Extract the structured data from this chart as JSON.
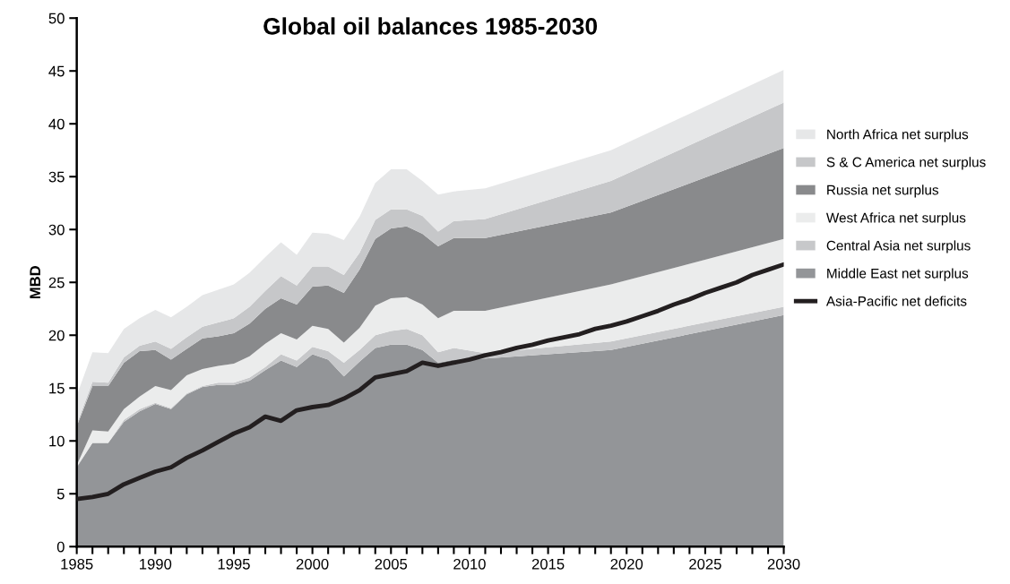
{
  "chart_data": {
    "type": "area",
    "stacked": true,
    "title": "Global oil balances 1985-2030",
    "ylabel": "MBD",
    "xlim": [
      1985,
      2030
    ],
    "ylim": [
      0,
      50
    ],
    "yticks": [
      0,
      5,
      10,
      15,
      20,
      25,
      30,
      35,
      40,
      45,
      50
    ],
    "xticks": [
      1985,
      {
        "value": 1986,
        "label": null
      },
      {
        "value": 1987,
        "label": null
      },
      {
        "value": 1988,
        "label": null
      },
      {
        "value": 1989,
        "label": null
      },
      1990,
      {
        "value": 1991,
        "label": null
      },
      {
        "value": 1992,
        "label": null
      },
      {
        "value": 1993,
        "label": null
      },
      {
        "value": 1994,
        "label": null
      },
      1995,
      {
        "value": 1996,
        "label": null
      },
      {
        "value": 1997,
        "label": null
      },
      {
        "value": 1998,
        "label": null
      },
      {
        "value": 1999,
        "label": null
      },
      2000,
      {
        "value": 2001,
        "label": null
      },
      {
        "value": 2002,
        "label": null
      },
      {
        "value": 2003,
        "label": null
      },
      {
        "value": 2004,
        "label": null
      },
      2005,
      {
        "value": 2006,
        "label": null
      },
      {
        "value": 2007,
        "label": null
      },
      {
        "value": 2008,
        "label": null
      },
      {
        "value": 2009,
        "label": null
      },
      2010,
      {
        "value": 2011,
        "label": null
      },
      {
        "value": 2012,
        "label": null
      },
      {
        "value": 2013,
        "label": null
      },
      {
        "value": 2014,
        "label": null
      },
      2015,
      {
        "value": 2016,
        "label": null
      },
      {
        "value": 2017,
        "label": null
      },
      {
        "value": 2018,
        "label": null
      },
      {
        "value": 2019,
        "label": null
      },
      2020,
      {
        "value": 2021,
        "label": null
      },
      {
        "value": 2022,
        "label": null
      },
      {
        "value": 2023,
        "label": null
      },
      {
        "value": 2024,
        "label": null
      },
      2025,
      {
        "value": 2026,
        "label": null
      },
      {
        "value": 2027,
        "label": null
      },
      {
        "value": 2028,
        "label": null
      },
      {
        "value": 2029,
        "label": null
      },
      2030
    ],
    "x": [
      1985,
      1986,
      1987,
      1988,
      1989,
      1990,
      1991,
      1992,
      1993,
      1994,
      1995,
      1996,
      1997,
      1998,
      1999,
      2000,
      2001,
      2002,
      2003,
      2004,
      2005,
      2006,
      2007,
      2008,
      2009,
      2011,
      2019,
      2030
    ],
    "grid": false,
    "legend": "right",
    "series": [
      {
        "name": "Middle East net surplus",
        "color": "#939598",
        "values": [
          7.5,
          9.8,
          9.8,
          11.8,
          12.8,
          13.5,
          13.0,
          14.4,
          15.1,
          15.3,
          15.3,
          15.7,
          16.7,
          17.6,
          17.0,
          18.2,
          17.7,
          16.1,
          17.5,
          18.8,
          19.1,
          19.1,
          18.6,
          17.4,
          17.7,
          17.8,
          18.6,
          21.9
        ]
      },
      {
        "name": "Central Asia net surplus",
        "color": "#c7c8ca",
        "values": [
          0.1,
          0.0,
          0.0,
          0.2,
          0.2,
          0.1,
          0.1,
          0.1,
          0.1,
          0.2,
          0.2,
          0.3,
          0.3,
          0.6,
          0.6,
          0.7,
          0.8,
          1.3,
          1.1,
          1.2,
          1.3,
          1.5,
          1.4,
          1.0,
          1.1,
          0.5,
          0.8,
          0.8
        ]
      },
      {
        "name": "West Africa net surplus",
        "color": "#ebecec",
        "values": [
          0.1,
          1.2,
          1.1,
          1.0,
          1.2,
          1.6,
          1.7,
          1.7,
          1.6,
          1.6,
          1.8,
          2.0,
          2.2,
          2.0,
          2.0,
          2.0,
          2.1,
          1.9,
          2.1,
          2.8,
          3.1,
          3.0,
          2.9,
          3.2,
          3.5,
          4.0,
          5.4,
          6.4
        ]
      },
      {
        "name": "Russia net surplus",
        "color": "#898a8c",
        "values": [
          3.7,
          4.2,
          4.3,
          4.4,
          4.3,
          3.4,
          2.9,
          2.5,
          2.9,
          2.8,
          2.9,
          3.1,
          3.3,
          3.3,
          3.3,
          3.7,
          4.1,
          4.7,
          5.5,
          6.3,
          6.6,
          6.7,
          6.7,
          6.8,
          6.9,
          6.9,
          6.8,
          8.6
        ]
      },
      {
        "name": "S & C America net surplus",
        "color": "#c6c7c9",
        "values": [
          0.2,
          0.4,
          0.3,
          0.5,
          0.5,
          0.8,
          1.0,
          1.1,
          1.1,
          1.3,
          1.4,
          1.6,
          1.7,
          2.1,
          1.8,
          1.9,
          1.8,
          1.7,
          1.6,
          1.8,
          1.8,
          1.6,
          1.7,
          1.4,
          1.6,
          1.8,
          3.0,
          4.3
        ]
      },
      {
        "name": "North Africa net surplus",
        "color": "#e6e7e8",
        "values": [
          2.7,
          2.8,
          2.8,
          2.7,
          2.6,
          3.0,
          3.0,
          2.9,
          3.0,
          3.1,
          3.2,
          3.2,
          3.2,
          3.2,
          2.9,
          3.2,
          3.1,
          3.3,
          3.4,
          3.5,
          3.8,
          3.8,
          3.3,
          3.5,
          2.8,
          2.9,
          2.9,
          3.1
        ]
      },
      {
        "name": "Asia-Pacific net deficits",
        "type": "line",
        "color": "#231f20",
        "x": [
          1985,
          1986,
          1987,
          1988,
          1989,
          1990,
          1991,
          1992,
          1993,
          1994,
          1995,
          1996,
          1997,
          1998,
          1999,
          2000,
          2001,
          2002,
          2003,
          2004,
          2005,
          2006,
          2007,
          2008,
          2009,
          2010,
          2011,
          2012,
          2013,
          2014,
          2015,
          2016,
          2017,
          2018,
          2019,
          2020,
          2021,
          2022,
          2023,
          2024,
          2025,
          2026,
          2027,
          2028,
          2029,
          2030
        ],
        "values": [
          4.5,
          4.7,
          5.0,
          5.9,
          6.5,
          7.1,
          7.5,
          8.4,
          9.1,
          9.9,
          10.7,
          11.3,
          12.3,
          11.9,
          12.9,
          13.2,
          13.4,
          14.0,
          14.8,
          16.0,
          16.3,
          16.6,
          17.4,
          17.1,
          17.4,
          17.7,
          18.1,
          18.4,
          18.8,
          19.1,
          19.5,
          19.8,
          20.1,
          20.6,
          20.9,
          21.3,
          21.8,
          22.3,
          22.9,
          23.4,
          24.0,
          24.5,
          25.0,
          25.7,
          26.2,
          26.7
        ]
      }
    ]
  }
}
